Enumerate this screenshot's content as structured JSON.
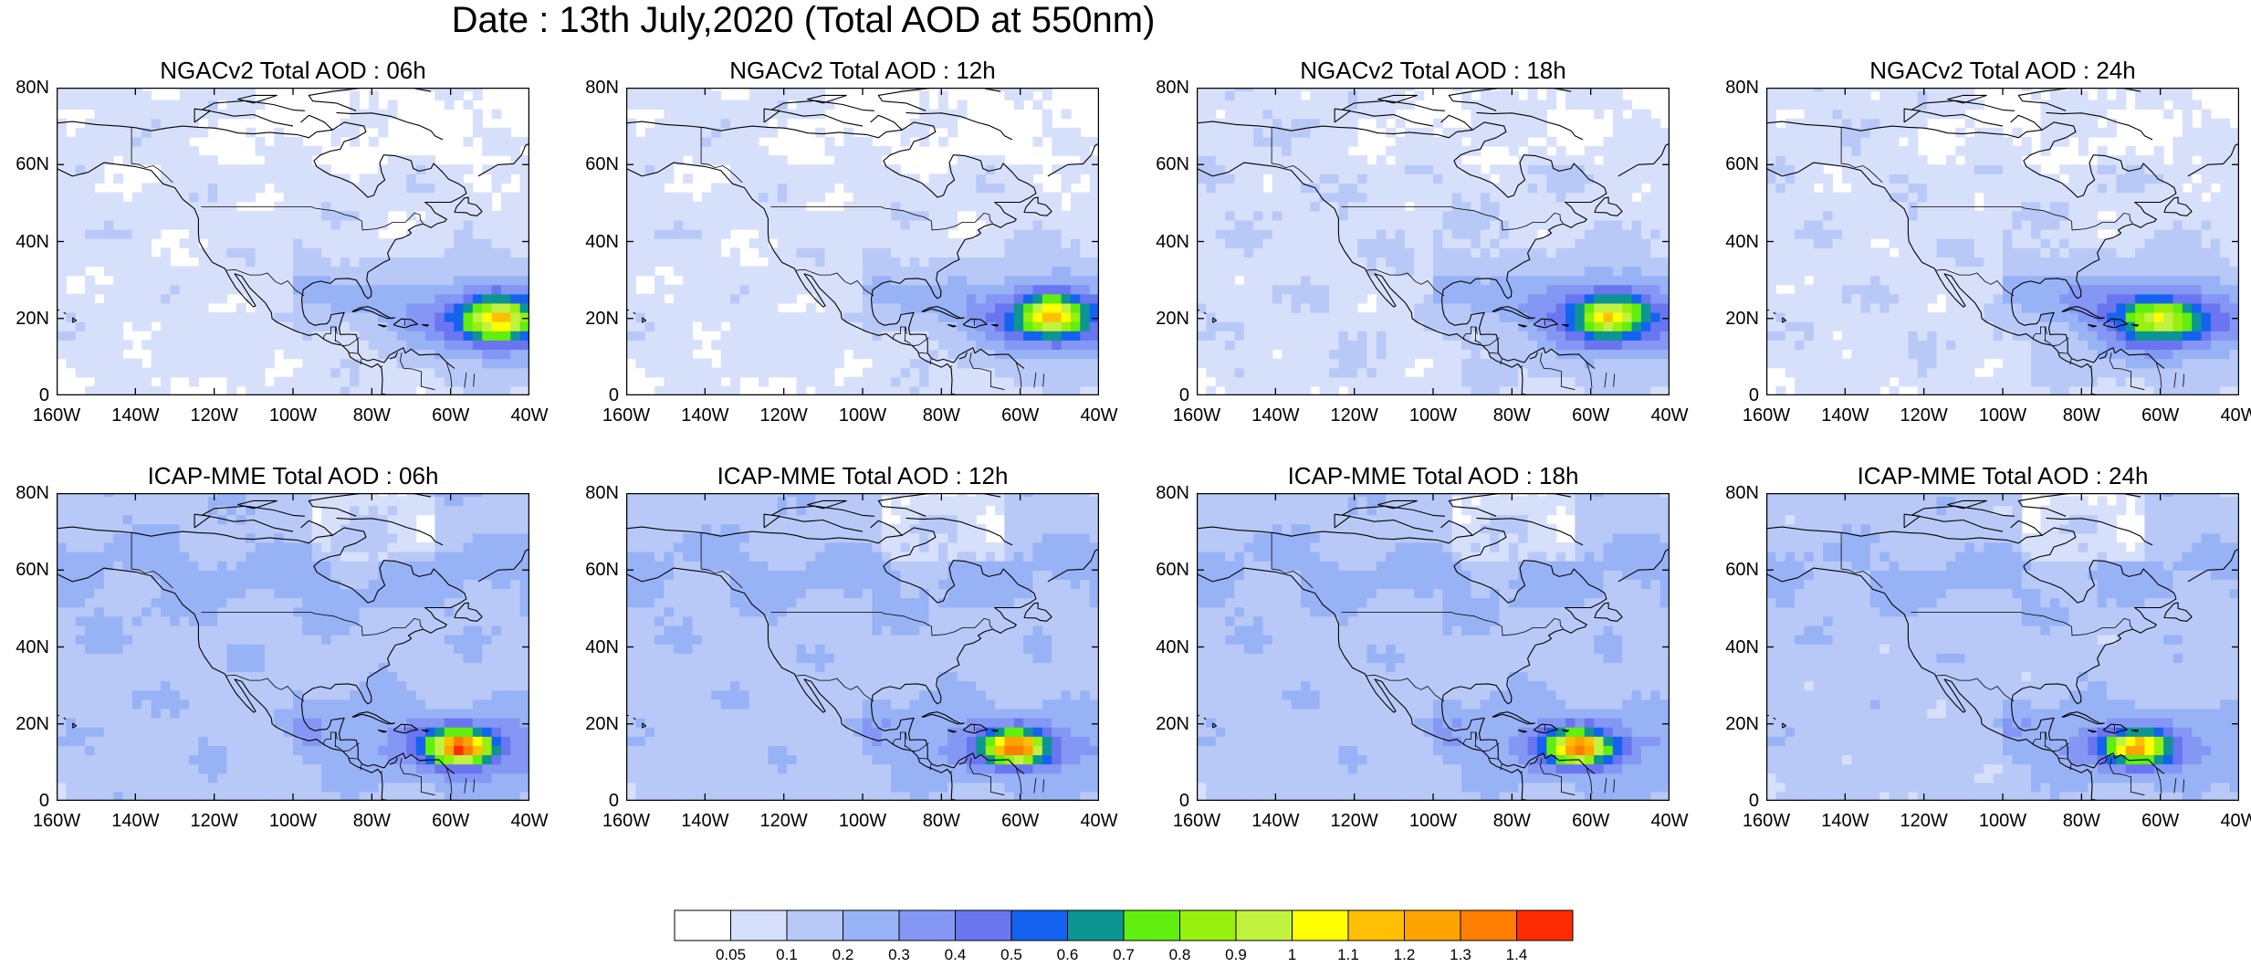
{
  "title": "Date : 13th July,2020 (Total AOD at 550nm)",
  "panels": [
    {
      "title": "NGACv2 Total AOD : 06h",
      "model": "ngac",
      "hour": "06h"
    },
    {
      "title": "NGACv2 Total AOD : 12h",
      "model": "ngac",
      "hour": "12h"
    },
    {
      "title": "NGACv2 Total AOD : 18h",
      "model": "ngac",
      "hour": "18h"
    },
    {
      "title": "NGACv2 Total AOD : 24h",
      "model": "ngac",
      "hour": "24h"
    },
    {
      "title": "ICAP-MME Total AOD : 06h",
      "model": "icap",
      "hour": "06h"
    },
    {
      "title": "ICAP-MME Total AOD : 12h",
      "model": "icap",
      "hour": "12h"
    },
    {
      "title": "ICAP-MME Total AOD : 18h",
      "model": "icap",
      "hour": "18h"
    },
    {
      "title": "ICAP-MME Total AOD : 24h",
      "model": "icap",
      "hour": "24h"
    }
  ],
  "axes": {
    "lon_range": [
      -160,
      -40
    ],
    "lat_range": [
      0,
      80
    ],
    "x_ticks": [
      {
        "value": -160,
        "label": "160W"
      },
      {
        "value": -140,
        "label": "140W"
      },
      {
        "value": -120,
        "label": "120W"
      },
      {
        "value": -100,
        "label": "100W"
      },
      {
        "value": -80,
        "label": "80W"
      },
      {
        "value": -60,
        "label": "60W"
      },
      {
        "value": -40,
        "label": "40W"
      }
    ],
    "y_ticks": [
      {
        "value": 0,
        "label": "0"
      },
      {
        "value": 20,
        "label": "20N"
      },
      {
        "value": 40,
        "label": "40N"
      },
      {
        "value": 60,
        "label": "60N"
      },
      {
        "value": 80,
        "label": "80N"
      }
    ]
  },
  "colorbar": {
    "colors": [
      "#ffffff",
      "#d7e0fb",
      "#b8c9f8",
      "#98b2f6",
      "#8597f4",
      "#6a75f0",
      "#1463f0",
      "#0d9594",
      "#60ef0e",
      "#97f00e",
      "#c1f23e",
      "#ffff02",
      "#ffc003",
      "#fea401",
      "#ff7d00",
      "#ff2b00"
    ],
    "labels": [
      "0.05",
      "0.1",
      "0.2",
      "0.3",
      "0.4",
      "0.5",
      "0.6",
      "0.7",
      "0.8",
      "0.9",
      "1",
      "1.1",
      "1.2",
      "1.3",
      "1.4"
    ]
  },
  "chart_data": {
    "type": "heatmap",
    "variable": "Total AOD at 550nm",
    "date": "13th July,2020",
    "lon_range": [
      -160,
      -40
    ],
    "lat_range": [
      0,
      80
    ],
    "levels": [
      0.05,
      0.1,
      0.2,
      0.3,
      0.4,
      0.5,
      0.6,
      0.7,
      0.8,
      0.9,
      1,
      1.1,
      1.2,
      1.3,
      1.4
    ],
    "fields": {
      "ngac": {
        "06h": {
          "background": 0.07,
          "arc": 0.16,
          "corr": 0.32,
          "plumes": [
            {
              "lon": -48,
              "lat": 20,
              "peak": 0.78,
              "sx": 8,
              "sy": 5
            }
          ]
        },
        "12h": {
          "background": 0.07,
          "arc": 0.15,
          "corr": 0.3,
          "plumes": [
            {
              "lon": -52,
              "lat": 21,
              "peak": 0.78,
              "sx": 8,
              "sy": 5
            }
          ]
        },
        "18h": {
          "background": 0.085,
          "arc": 0.15,
          "corr": 0.3,
          "plumes": [
            {
              "lon": -55,
              "lat": 21,
              "peak": 0.73,
              "sx": 8,
              "sy": 5
            }
          ]
        },
        "24h": {
          "background": 0.08,
          "arc": 0.15,
          "corr": 0.3,
          "plumes": [
            {
              "lon": -60,
              "lat": 20,
              "peak": 0.63,
              "sx": 9,
              "sy": 5
            }
          ]
        }
      },
      "icap": {
        "06h": {
          "background": 0.17,
          "arc": 0.12,
          "corr": 0.2,
          "plumes": [
            {
              "lon": -57,
              "lat": 14,
              "peak": 1.1,
              "sx": 7,
              "sy": 3.8
            }
          ]
        },
        "12h": {
          "background": 0.16,
          "arc": 0.12,
          "corr": 0.2,
          "plumes": [
            {
              "lon": -61,
              "lat": 14,
              "peak": 1.02,
              "sx": 7,
              "sy": 3.8
            }
          ]
        },
        "18h": {
          "background": 0.16,
          "arc": 0.12,
          "corr": 0.2,
          "plumes": [
            {
              "lon": -63,
              "lat": 14,
              "peak": 0.98,
              "sx": 7,
              "sy": 3.8
            }
          ]
        },
        "24h": {
          "background": 0.15,
          "arc": 0.12,
          "corr": 0.2,
          "plumes": [
            {
              "lon": -66,
              "lat": 14,
              "peak": 0.88,
              "sx": 7,
              "sy": 3.6
            }
          ]
        }
      }
    }
  }
}
